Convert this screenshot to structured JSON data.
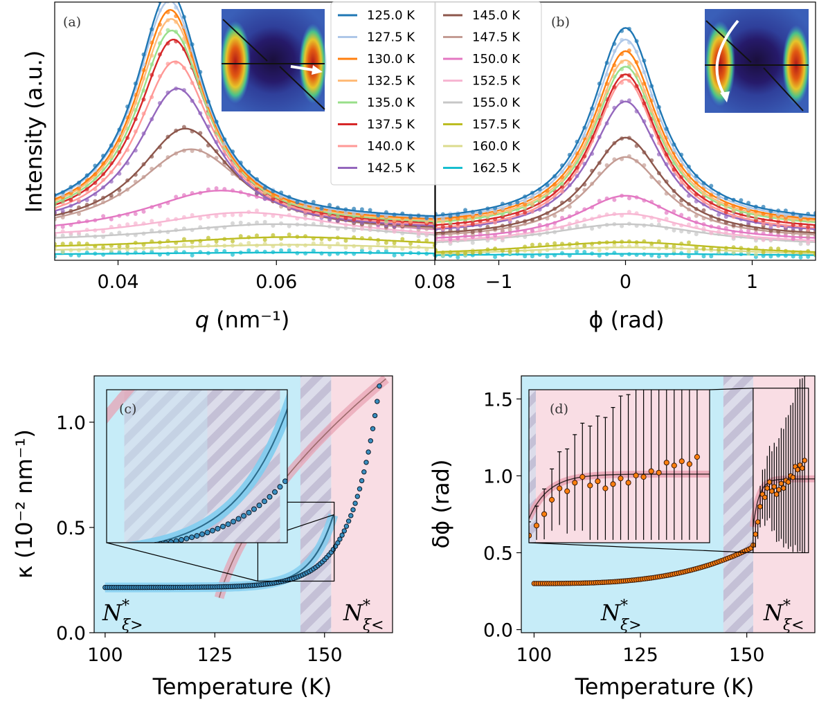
{
  "chart_data": [
    {
      "id": "a",
      "type": "line",
      "panel_label": "(a)",
      "xlabel": "q (nm⁻¹)",
      "xlabel_var": "q",
      "xlabel_unit": " (nm⁻¹)",
      "ylabel": "Intensity (a.u.)",
      "xlim": [
        0.032,
        0.08
      ],
      "ylim": [
        0,
        1.0
      ],
      "xticks": [
        0.04,
        0.06,
        0.08
      ],
      "xtick_labels": [
        "0.04",
        "0.06",
        "0.08"
      ],
      "yticks_shown": false,
      "model": "peak: y = base + amp/(1+((q-center)/width)^2), markers are scattered measured points",
      "series": [
        {
          "temp": "125.0 K",
          "color": "#1f77b4",
          "center": 0.0465,
          "width": 0.0052,
          "amp": 0.89,
          "base": 0.15
        },
        {
          "temp": "127.5 K",
          "color": "#aec7e8",
          "center": 0.0465,
          "width": 0.0053,
          "amp": 0.86,
          "base": 0.145
        },
        {
          "temp": "130.0 K",
          "color": "#ff7f0e",
          "center": 0.0466,
          "width": 0.0053,
          "amp": 0.83,
          "base": 0.14
        },
        {
          "temp": "132.5 K",
          "color": "#ffbb78",
          "center": 0.0467,
          "width": 0.0054,
          "amp": 0.8,
          "base": 0.135
        },
        {
          "temp": "135.0 K",
          "color": "#98df8a",
          "center": 0.0468,
          "width": 0.0055,
          "amp": 0.76,
          "base": 0.13
        },
        {
          "temp": "137.5 K",
          "color": "#d62728",
          "center": 0.047,
          "width": 0.0056,
          "amp": 0.73,
          "base": 0.125
        },
        {
          "temp": "140.0 K",
          "color": "#ff9896",
          "center": 0.0472,
          "width": 0.0058,
          "amp": 0.65,
          "base": 0.12
        },
        {
          "temp": "142.5 K",
          "color": "#9467bd",
          "center": 0.0475,
          "width": 0.0062,
          "amp": 0.55,
          "base": 0.115
        },
        {
          "temp": "145.0 K",
          "color": "#8c564b",
          "center": 0.0485,
          "width": 0.0072,
          "amp": 0.4,
          "base": 0.11
        },
        {
          "temp": "147.5 K",
          "color": "#c49c94",
          "center": 0.0492,
          "width": 0.0085,
          "amp": 0.33,
          "base": 0.1
        },
        {
          "temp": "150.0 K",
          "color": "#e377c2",
          "center": 0.053,
          "width": 0.012,
          "amp": 0.18,
          "base": 0.09
        },
        {
          "temp": "152.5 K",
          "color": "#f7b6d2",
          "center": 0.056,
          "width": 0.015,
          "amp": 0.11,
          "base": 0.075
        },
        {
          "temp": "155.0 K",
          "color": "#c7c7c7",
          "center": 0.06,
          "width": 0.018,
          "amp": 0.075,
          "base": 0.065
        },
        {
          "temp": "157.5 K",
          "color": "#bcbd22",
          "center": 0.062,
          "width": 0.02,
          "amp": 0.05,
          "base": 0.04
        },
        {
          "temp": "160.0 K",
          "color": "#dbdb8d",
          "center": 0.062,
          "width": 0.022,
          "amp": 0.03,
          "base": 0.03
        },
        {
          "temp": "162.5 K",
          "color": "#17becf",
          "center": 0.062,
          "width": 0.025,
          "amp": 0.01,
          "base": 0.02
        }
      ]
    },
    {
      "id": "b",
      "type": "line",
      "panel_label": "(b)",
      "xlabel": "ϕ (rad)",
      "xlim": [
        -1.5,
        1.5
      ],
      "ylim": [
        0,
        1.0
      ],
      "xticks": [
        -1,
        0,
        1
      ],
      "xtick_labels": [
        "−1",
        "0",
        "1"
      ],
      "model": "peak: y = base + amp/(1+(phi/width)^2)",
      "series": [
        {
          "temp": "125.0 K",
          "color": "#1f77b4",
          "width": 0.32,
          "amp": 0.76,
          "base": 0.14
        },
        {
          "temp": "127.5 K",
          "color": "#aec7e8",
          "width": 0.32,
          "amp": 0.72,
          "base": 0.135
        },
        {
          "temp": "130.0 K",
          "color": "#ff7f0e",
          "width": 0.32,
          "amp": 0.68,
          "base": 0.13
        },
        {
          "temp": "132.5 K",
          "color": "#ffbb78",
          "width": 0.32,
          "amp": 0.65,
          "base": 0.125
        },
        {
          "temp": "135.0 K",
          "color": "#98df8a",
          "width": 0.32,
          "amp": 0.63,
          "base": 0.12
        },
        {
          "temp": "137.5 K",
          "color": "#d62728",
          "width": 0.32,
          "amp": 0.61,
          "base": 0.11
        },
        {
          "temp": "140.0 K",
          "color": "#ff9896",
          "width": 0.32,
          "amp": 0.6,
          "base": 0.1
        },
        {
          "temp": "142.5 K",
          "color": "#9467bd",
          "width": 0.34,
          "amp": 0.52,
          "base": 0.095
        },
        {
          "temp": "145.0 K",
          "color": "#8c564b",
          "width": 0.36,
          "amp": 0.39,
          "base": 0.085
        },
        {
          "temp": "147.5 K",
          "color": "#c49c94",
          "width": 0.38,
          "amp": 0.32,
          "base": 0.08
        },
        {
          "temp": "150.0 K",
          "color": "#e377c2",
          "width": 0.48,
          "amp": 0.18,
          "base": 0.07
        },
        {
          "temp": "152.5 K",
          "color": "#f7b6d2",
          "width": 0.6,
          "amp": 0.12,
          "base": 0.06
        },
        {
          "temp": "155.0 K",
          "color": "#c7c7c7",
          "width": 0.8,
          "amp": 0.09,
          "base": 0.05
        },
        {
          "temp": "157.5 K",
          "color": "#bcbd22",
          "width": 1.0,
          "amp": 0.055,
          "base": 0.015
        },
        {
          "temp": "160.0 K",
          "color": "#dbdb8d",
          "width": 1.2,
          "amp": 0.04,
          "base": 0.01
        },
        {
          "temp": "162.5 K",
          "color": "#17becf",
          "width": 1.5,
          "amp": 0.01,
          "base": 0.015
        }
      ]
    },
    {
      "id": "c",
      "type": "scatter",
      "panel_label": "(c)",
      "xlabel": "Temperature (K)",
      "ylabel": "κ (10⁻² nm⁻¹)",
      "xlim": [
        97.5,
        165.5
      ],
      "ylim": [
        0,
        1.22
      ],
      "xticks": [
        100,
        125,
        150
      ],
      "xtick_labels": [
        "100",
        "125",
        "150"
      ],
      "yticks": [
        0.0,
        0.5,
        1.0
      ],
      "ytick_labels": [
        "0.0",
        "0.5",
        "1.0"
      ],
      "regions": [
        {
          "name": "N*ξ>",
          "color": "#c6ecf8",
          "x": [
            97.5,
            151.5
          ]
        },
        {
          "name": "N*ξ<",
          "color": "#f9dde4",
          "x": [
            151.5,
            165.5
          ]
        }
      ],
      "hatched_band": [
        144.5,
        151.5
      ],
      "region_label_left": {
        "base": "N",
        "sup": "*",
        "sub": "ξ>"
      },
      "region_label_right": {
        "base": "N",
        "sup": "*",
        "sub": "ξ<"
      },
      "data_model": "kappa = 0.215 + 0.0055*exp((T-130)/6.3)",
      "data_T_range": [
        100,
        162.5
      ],
      "data_T_step": 0.5,
      "fit_low": {
        "color": "#2b6a8a",
        "band": "#7fcdf0",
        "model": "0.215 + 0.0046*exp((T-130)/5.1)",
        "T_range": [
          100,
          152
        ]
      },
      "fit_high": {
        "color": "#9a6a6a",
        "band": "#e8a0b0",
        "model": "0.33*(T-124.5)^0.83/8.8 offset",
        "T_range": [
          126,
          163
        ]
      },
      "zoom_box": {
        "x": [
          134.8,
          152.2
        ],
        "y": [
          0.245,
          0.62
        ]
      },
      "inset": {
        "x": [
          134.8,
          152.2
        ],
        "y": [
          0.245,
          0.62
        ]
      }
    },
    {
      "id": "d",
      "type": "scatter",
      "panel_label": "(d)",
      "xlabel": "Temperature (K)",
      "ylabel": "δϕ (rad)",
      "xlim": [
        97.0,
        166.0
      ],
      "ylim": [
        -0.02,
        1.65
      ],
      "xticks": [
        100,
        125,
        150
      ],
      "xtick_labels": [
        "100",
        "125",
        "150"
      ],
      "yticks": [
        0.0,
        0.5,
        1.0,
        1.5
      ],
      "ytick_labels": [
        "0.0",
        "0.5",
        "1.0",
        "1.5"
      ],
      "regions": [
        {
          "name": "N*ξ>",
          "color": "#c6ecf8",
          "x": [
            97.0,
            151.5
          ]
        },
        {
          "name": "N*ξ<",
          "color": "#f9dde4",
          "x": [
            151.5,
            166.0
          ]
        }
      ],
      "hatched_band": [
        144.5,
        151.5
      ],
      "region_label_left": {
        "base": "N",
        "sup": "*",
        "sub": "ξ>"
      },
      "region_label_right": {
        "base": "N",
        "sup": "*",
        "sub": "ξ<"
      },
      "data_model": "dphi rises slowly from 0.30 at 100 K to 0.53 at 151 K, jumps to ~0.7-1.1 above",
      "marker_color": "#ff7f0e",
      "zoom_box": {
        "x": [
          151.5,
          164.5
        ],
        "y": [
          0.5,
          1.57
        ]
      },
      "inset": {
        "x": [
          151.5,
          164.5
        ],
        "y": [
          0.5,
          1.57
        ]
      }
    }
  ],
  "legend": {
    "entries": [
      {
        "label": "125.0 K",
        "color": "#1f77b4"
      },
      {
        "label": "127.5 K",
        "color": "#aec7e8"
      },
      {
        "label": "130.0 K",
        "color": "#ff7f0e"
      },
      {
        "label": "132.5 K",
        "color": "#ffbb78"
      },
      {
        "label": "135.0 K",
        "color": "#98df8a"
      },
      {
        "label": "137.5 K",
        "color": "#d62728"
      },
      {
        "label": "140.0 K",
        "color": "#ff9896"
      },
      {
        "label": "142.5 K",
        "color": "#9467bd"
      },
      {
        "label": "145.0 K",
        "color": "#8c564b"
      },
      {
        "label": "147.5 K",
        "color": "#c49c94"
      },
      {
        "label": "150.0 K",
        "color": "#e377c2"
      },
      {
        "label": "152.5 K",
        "color": "#f7b6d2"
      },
      {
        "label": "155.0 K",
        "color": "#c7c7c7"
      },
      {
        "label": "157.5 K",
        "color": "#bcbd22"
      },
      {
        "label": "160.0 K",
        "color": "#dbdb8d"
      },
      {
        "label": "162.5 K",
        "color": "#17becf"
      }
    ]
  }
}
